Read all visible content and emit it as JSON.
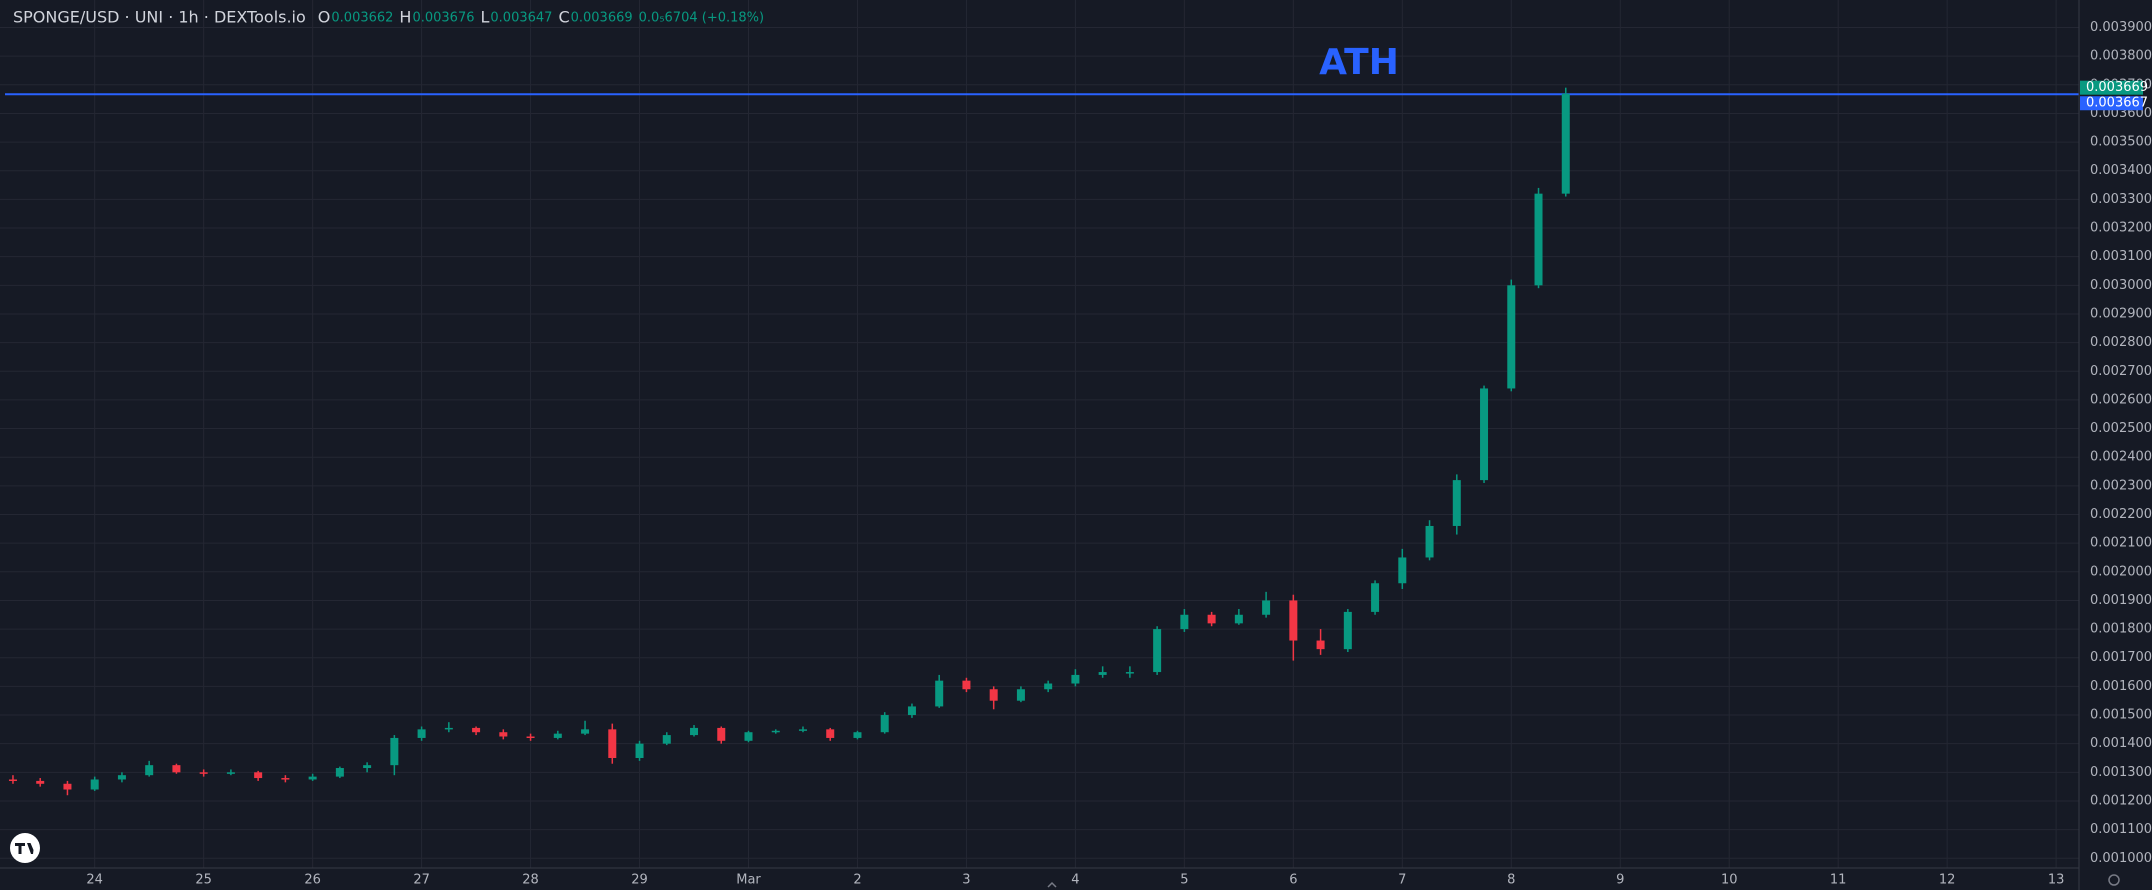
{
  "chart_data": {
    "type": "candlestick",
    "title": "SPONGE/USD · UNI · 1h · DEXTools.io",
    "ohlc_header": [
      {
        "label": "O",
        "value": 0.003662
      },
      {
        "label": "H",
        "value": 0.003676
      },
      {
        "label": "L",
        "value": 0.003647
      },
      {
        "label": "C",
        "value": 0.003669
      }
    ],
    "change": "0.0₅6704 (+0.18%)",
    "up_color": "#089981",
    "down_color": "#f23645",
    "x": [
      -0.75,
      -0.5,
      -0.25,
      0,
      0.25,
      0.5,
      0.75,
      1,
      1.25,
      1.5,
      1.75,
      2,
      2.25,
      2.5,
      2.75,
      3,
      3.25,
      3.5,
      3.75,
      4,
      4.25,
      4.5,
      4.75,
      5,
      5.25,
      5.5,
      5.75,
      6,
      6.25,
      6.5,
      6.75,
      7,
      7.25,
      7.5,
      7.75,
      8,
      8.25,
      8.5,
      8.75,
      9,
      9.25,
      9.5,
      9.75,
      10,
      10.25,
      10.5,
      10.75,
      11,
      11.25,
      11.5,
      11.75,
      12,
      12.25,
      12.5,
      12.75,
      13,
      13.25,
      13.5
    ],
    "open": [
      0.001275,
      0.00127,
      0.00126,
      0.00124,
      0.001275,
      0.00129,
      0.001325,
      0.0013,
      0.001295,
      0.0013,
      0.00128,
      0.001275,
      0.001285,
      0.001315,
      0.001325,
      0.00142,
      0.00145,
      0.001455,
      0.00144,
      0.001425,
      0.00142,
      0.001435,
      0.00145,
      0.00135,
      0.0014,
      0.00143,
      0.001455,
      0.00141,
      0.00144,
      0.001445,
      0.00145,
      0.00142,
      0.00144,
      0.0015,
      0.00153,
      0.00162,
      0.00159,
      0.00155,
      0.00159,
      0.00161,
      0.00164,
      0.00165,
      0.00165,
      0.0018,
      0.00185,
      0.00182,
      0.00185,
      0.0019,
      0.00176,
      0.00173,
      0.00186,
      0.00196,
      0.00205,
      0.00216,
      0.00232,
      0.00264,
      0.003,
      0.00332
    ],
    "high": [
      0.00129,
      0.00128,
      0.00127,
      0.001285,
      0.0013,
      0.00134,
      0.00133,
      0.00131,
      0.00131,
      0.001305,
      0.00129,
      0.001295,
      0.00132,
      0.001335,
      0.00143,
      0.00146,
      0.001475,
      0.00146,
      0.00145,
      0.001435,
      0.001445,
      0.00148,
      0.00147,
      0.00141,
      0.00144,
      0.001465,
      0.00146,
      0.001445,
      0.00145,
      0.00146,
      0.001455,
      0.001445,
      0.00151,
      0.00154,
      0.00164,
      0.00163,
      0.0016,
      0.0016,
      0.00162,
      0.00166,
      0.00167,
      0.00167,
      0.00181,
      0.00187,
      0.00186,
      0.00187,
      0.00193,
      0.00192,
      0.0018,
      0.00187,
      0.00197,
      0.00208,
      0.00218,
      0.00234,
      0.00265,
      0.00302,
      0.00334,
      0.00369
    ],
    "low": [
      0.00126,
      0.00125,
      0.00122,
      0.001235,
      0.001265,
      0.001285,
      0.001295,
      0.001285,
      0.00129,
      0.00127,
      0.001265,
      0.00127,
      0.00128,
      0.0013,
      0.00129,
      0.00141,
      0.00144,
      0.00143,
      0.001415,
      0.00141,
      0.001415,
      0.00143,
      0.00133,
      0.00134,
      0.001395,
      0.001425,
      0.0014,
      0.001405,
      0.001435,
      0.00144,
      0.00141,
      0.001415,
      0.001435,
      0.00149,
      0.001525,
      0.00158,
      0.00152,
      0.001545,
      0.00158,
      0.0016,
      0.00163,
      0.00163,
      0.00164,
      0.00179,
      0.00181,
      0.001815,
      0.00184,
      0.00169,
      0.00171,
      0.00172,
      0.00185,
      0.00194,
      0.00204,
      0.00213,
      0.00231,
      0.00263,
      0.00299,
      0.00331
    ],
    "close": [
      0.00127,
      0.00126,
      0.00124,
      0.001275,
      0.00129,
      0.001325,
      0.0013,
      0.001295,
      0.0013,
      0.00128,
      0.001275,
      0.001285,
      0.001315,
      0.001325,
      0.00142,
      0.00145,
      0.001455,
      0.00144,
      0.001425,
      0.00142,
      0.001435,
      0.00145,
      0.00135,
      0.0014,
      0.00143,
      0.001455,
      0.00141,
      0.00144,
      0.001445,
      0.00145,
      0.00142,
      0.00144,
      0.0015,
      0.00153,
      0.00162,
      0.00159,
      0.00155,
      0.00159,
      0.00161,
      0.00164,
      0.00165,
      0.00165,
      0.0018,
      0.00185,
      0.00182,
      0.00185,
      0.0019,
      0.00176,
      0.00173,
      0.00186,
      0.00196,
      0.00205,
      0.00216,
      0.00232,
      0.00264,
      0.003,
      0.00332,
      0.003669
    ],
    "xlim": [
      -0.869,
      18.21
    ],
    "xticks": [
      {
        "value": 0,
        "label": "24"
      },
      {
        "value": 1,
        "label": "25"
      },
      {
        "value": 2,
        "label": "26"
      },
      {
        "value": 3,
        "label": "27"
      },
      {
        "value": 4,
        "label": "28"
      },
      {
        "value": 5,
        "label": "29"
      },
      {
        "value": 6,
        "label": "Mar"
      },
      {
        "value": 7,
        "label": "2"
      },
      {
        "value": 8,
        "label": "3"
      },
      {
        "value": 9,
        "label": "4"
      },
      {
        "value": 10,
        "label": "5"
      },
      {
        "value": 11,
        "label": "6"
      },
      {
        "value": 12,
        "label": "7"
      },
      {
        "value": 13,
        "label": "8"
      },
      {
        "value": 14,
        "label": "9"
      },
      {
        "value": 15,
        "label": "10"
      },
      {
        "value": 16,
        "label": "11"
      },
      {
        "value": 17,
        "label": "12"
      },
      {
        "value": 18,
        "label": "13"
      }
    ],
    "ylim": [
      0.000966,
      0.003996
    ],
    "yticks": [
      {
        "value": 0.001,
        "label": "0.001000"
      },
      {
        "value": 0.0011,
        "label": "0.001100"
      },
      {
        "value": 0.0012,
        "label": "0.001200"
      },
      {
        "value": 0.0013,
        "label": "0.001300"
      },
      {
        "value": 0.0014,
        "label": "0.001400"
      },
      {
        "value": 0.0015,
        "label": "0.001500"
      },
      {
        "value": 0.0016,
        "label": "0.001600"
      },
      {
        "value": 0.0017,
        "label": "0.001700"
      },
      {
        "value": 0.0018,
        "label": "0.001800"
      },
      {
        "value": 0.0019,
        "label": "0.001900"
      },
      {
        "value": 0.002,
        "label": "0.002000"
      },
      {
        "value": 0.0021,
        "label": "0.002100"
      },
      {
        "value": 0.0022,
        "label": "0.002200"
      },
      {
        "value": 0.0023,
        "label": "0.002300"
      },
      {
        "value": 0.0024,
        "label": "0.002400"
      },
      {
        "value": 0.0025,
        "label": "0.002500"
      },
      {
        "value": 0.0026,
        "label": "0.002600"
      },
      {
        "value": 0.0027,
        "label": "0.002700"
      },
      {
        "value": 0.0028,
        "label": "0.002800"
      },
      {
        "value": 0.0029,
        "label": "0.002900"
      },
      {
        "value": 0.003,
        "label": "0.003000"
      },
      {
        "value": 0.0031,
        "label": "0.003100"
      },
      {
        "value": 0.0032,
        "label": "0.003200"
      },
      {
        "value": 0.0033,
        "label": "0.003300"
      },
      {
        "value": 0.0034,
        "label": "0.003400"
      },
      {
        "value": 0.0035,
        "label": "0.003500"
      },
      {
        "value": 0.0036,
        "label": "0.003600"
      },
      {
        "value": 0.0037,
        "label": "0.003700"
      },
      {
        "value": 0.0038,
        "label": "0.003800"
      },
      {
        "value": 0.0039,
        "label": "0.003900"
      }
    ],
    "grid": true,
    "reference_line": {
      "value": 0.003667,
      "label": "ATH",
      "color": "#2962ff"
    },
    "last_price": 0.003669
  }
}
